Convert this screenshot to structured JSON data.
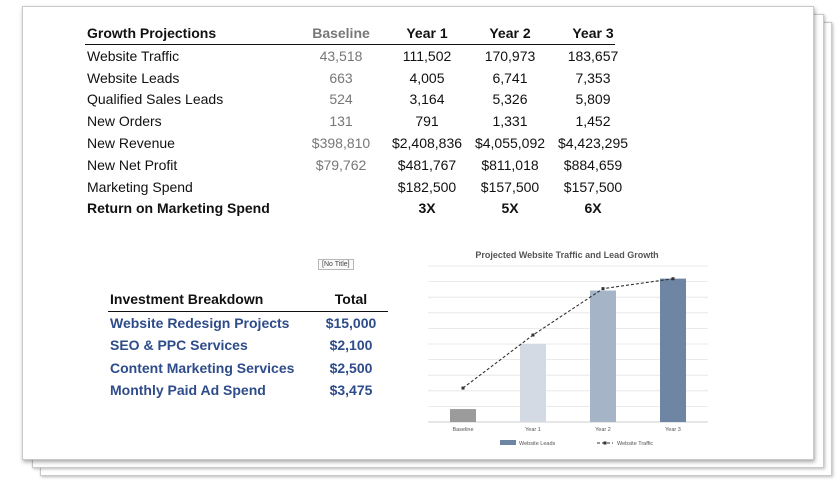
{
  "growth_table": {
    "headers": [
      "Growth Projections",
      "Baseline",
      "Year 1",
      "Year 2",
      "Year 3"
    ],
    "rows": [
      {
        "label": "Website Traffic",
        "baseline": "43,518",
        "year1": "111,502",
        "year2": "170,973",
        "year3": "183,657"
      },
      {
        "label": "Website Leads",
        "baseline": "663",
        "year1": "4,005",
        "year2": "6,741",
        "year3": "7,353"
      },
      {
        "label": "Qualified Sales Leads",
        "baseline": "524",
        "year1": "3,164",
        "year2": "5,326",
        "year3": "5,809"
      },
      {
        "label": "New Orders",
        "baseline": "131",
        "year1": "791",
        "year2": "1,331",
        "year3": "1,452"
      },
      {
        "label": "New Revenue",
        "baseline": "$398,810",
        "year1": "$2,408,836",
        "year2": "$4,055,092",
        "year3": "$4,423,295"
      },
      {
        "label": "New Net Profit",
        "baseline": "$79,762",
        "year1": "$481,767",
        "year2": "$811,018",
        "year3": "$884,659"
      },
      {
        "label": "Marketing Spend",
        "baseline": "",
        "year1": "$182,500",
        "year2": "$157,500",
        "year3": "$157,500"
      }
    ],
    "roi_row": {
      "label": "Return on Marketing Spend",
      "baseline": "",
      "year1": "3X",
      "year2": "5X",
      "year3": "6X"
    }
  },
  "no_title_label": "[No Title]",
  "investment": {
    "headers": [
      "Investment Breakdown",
      "Total"
    ],
    "items": [
      {
        "name": "Website Redesign Projects",
        "total": "$15,000"
      },
      {
        "name": "SEO & PPC Services",
        "total": "$2,100"
      },
      {
        "name": "Content Marketing Services",
        "total": "$2,500"
      },
      {
        "name": "Monthly Paid Ad Spend",
        "total": "$3,475"
      }
    ]
  },
  "colors": {
    "investment_text": "#2e4c8a",
    "bar_baseline": "#9b9b9b",
    "bar_year1": "#d3dae4",
    "bar_year2": "#a6b4c7",
    "bar_year3": "#6e85a4",
    "line": "#333333"
  },
  "chart_data": {
    "type": "bar",
    "title": "Projected Website Traffic and Lead Growth",
    "categories": [
      "Baseline",
      "Year 1",
      "Year 2",
      "Year 3"
    ],
    "series": [
      {
        "name": "Website Leads",
        "kind": "bar",
        "values": [
          663,
          4005,
          6741,
          7353
        ]
      },
      {
        "name": "Website Traffic",
        "kind": "line-dashed",
        "values": [
          43518,
          111502,
          170973,
          183657
        ]
      }
    ],
    "ylim_bars": [
      0,
      8000
    ],
    "ylim_line": [
      0,
      200000
    ],
    "grid": true,
    "legend": "bottom"
  }
}
